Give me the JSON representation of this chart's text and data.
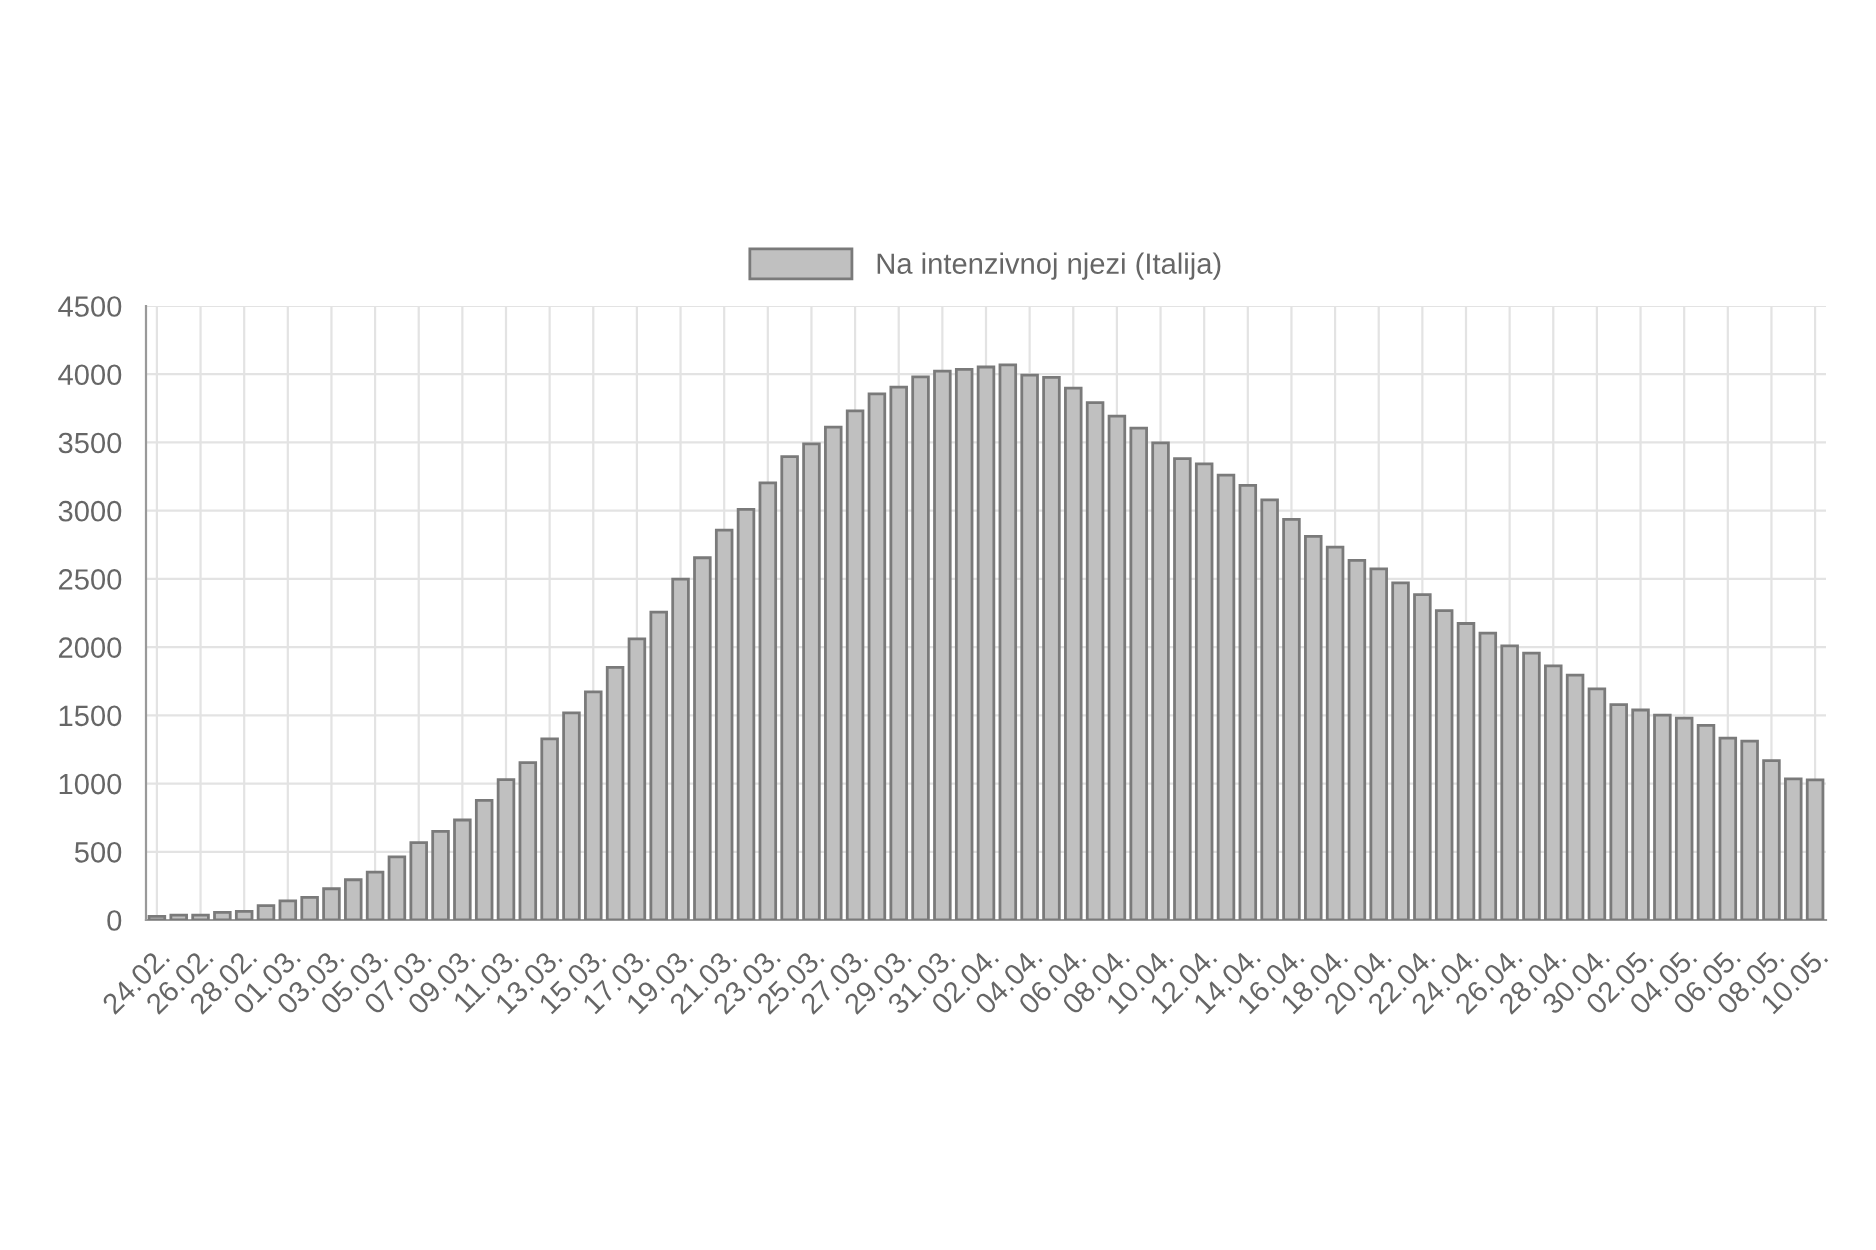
{
  "chart_data": {
    "type": "bar",
    "categories": [
      "24.02.",
      null,
      "26.02.",
      null,
      "28.02.",
      null,
      "01.03.",
      null,
      "03.03.",
      null,
      "05.03.",
      null,
      "07.03.",
      null,
      "09.03.",
      null,
      "11.03.",
      null,
      "13.03.",
      null,
      "15.03.",
      null,
      "17.03.",
      null,
      "19.03.",
      null,
      "21.03.",
      null,
      "23.03.",
      null,
      "25.03.",
      null,
      "27.03.",
      null,
      "29.03.",
      null,
      "31.03.",
      null,
      "02.04.",
      null,
      "04.04.",
      null,
      "06.04.",
      null,
      "08.04.",
      null,
      "10.04.",
      null,
      "12.04.",
      null,
      "14.04.",
      null,
      "16.04.",
      null,
      "18.04.",
      null,
      "20.04.",
      null,
      "22.04.",
      null,
      "24.04.",
      null,
      "26.04.",
      null,
      "28.04.",
      null,
      "30.04.",
      null,
      "02.05.",
      null,
      "04.05.",
      null,
      "06.05.",
      null,
      "08.05.",
      null,
      "10.05."
    ],
    "series": [
      {
        "name": "Na intenzivnoj njezi (Italija)",
        "color": "#c0c0c0",
        "values": [
          27,
          35,
          36,
          56,
          64,
          105,
          140,
          166,
          229,
          295,
          351,
          462,
          567,
          650,
          733,
          877,
          1028,
          1153,
          1328,
          1518,
          1672,
          1851,
          2060,
          2257,
          2498,
          2655,
          2857,
          3009,
          3204,
          3396,
          3489,
          3612,
          3732,
          3856,
          3906,
          3981,
          4023,
          4035,
          4053,
          4068,
          3994,
          3977,
          3898,
          3792,
          3693,
          3605,
          3497,
          3381,
          3343,
          3260,
          3186,
          3079,
          2936,
          2812,
          2733,
          2635,
          2573,
          2471,
          2384,
          2267,
          2173,
          2102,
          2009,
          1956,
          1863,
          1795,
          1694,
          1578,
          1539,
          1501,
          1479,
          1427,
          1333,
          1311,
          1168,
          1034,
          1027
        ]
      }
    ],
    "ylim": [
      0,
      4500
    ],
    "yticks": [
      0,
      500,
      1000,
      1500,
      2000,
      2500,
      3000,
      3500,
      4000,
      4500
    ],
    "grid": true,
    "legend": "top"
  }
}
